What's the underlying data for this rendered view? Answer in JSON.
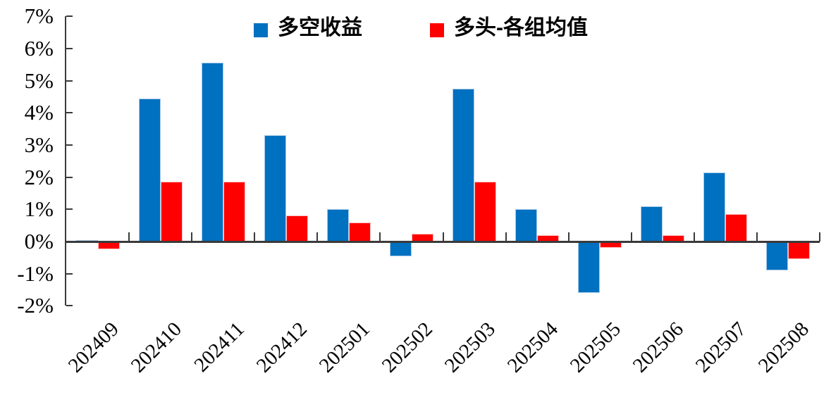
{
  "chart_data": {
    "type": "bar",
    "title": "",
    "xlabel": "",
    "ylabel": "",
    "unit": "%",
    "grid": false,
    "legend_position": "top",
    "ylim": [
      -2,
      7
    ],
    "ytick_values": [
      7,
      6,
      5,
      4,
      3,
      2,
      1,
      0,
      -1,
      -2
    ],
    "ytick_labels": [
      "7%",
      "6%",
      "5%",
      "4%",
      "3%",
      "2%",
      "1%",
      "0%",
      "-1%",
      "-2%"
    ],
    "categories": [
      "202409",
      "202410",
      "202411",
      "202412",
      "202501",
      "202502",
      "202503",
      "202504",
      "202505",
      "202506",
      "202507",
      "202508"
    ],
    "series": [
      {
        "name": "多空收益",
        "color": "#0070C0",
        "values": [
          0.05,
          4.45,
          5.55,
          3.3,
          1.0,
          -0.45,
          4.75,
          1.0,
          -1.6,
          1.1,
          2.15,
          -0.9
        ]
      },
      {
        "name": "多头-各组均值",
        "color": "#FF0000",
        "values": [
          -0.25,
          1.85,
          1.85,
          0.8,
          0.6,
          0.25,
          1.85,
          0.2,
          -0.2,
          0.2,
          0.85,
          -0.55
        ]
      }
    ],
    "axis_color": "#3a3a3a",
    "text_color": "#000000"
  }
}
